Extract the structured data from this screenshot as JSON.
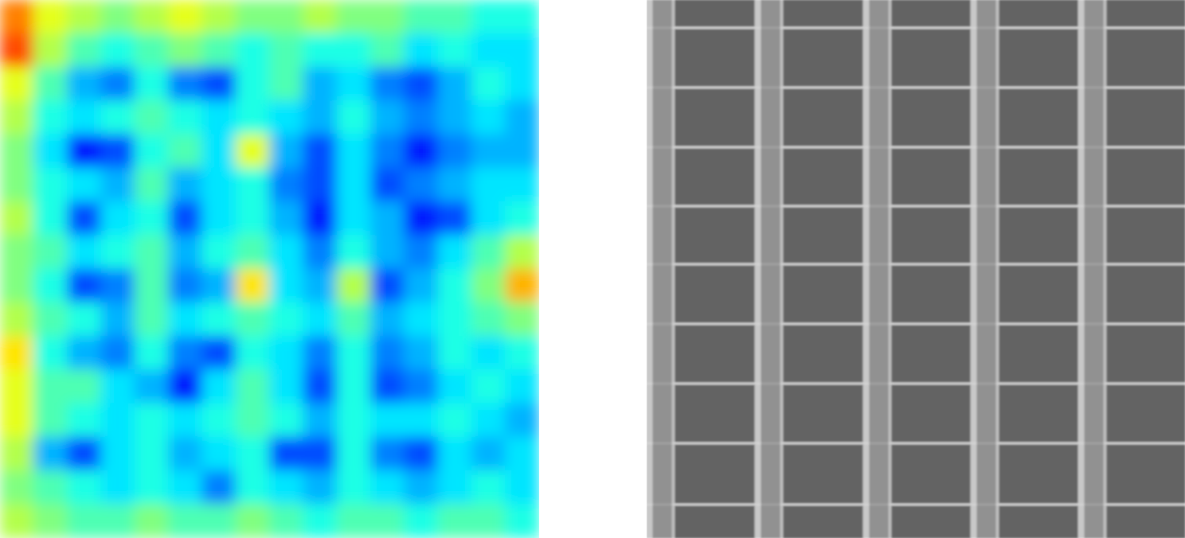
{
  "chart_data": [
    {
      "type": "heatmap",
      "color": "jet",
      "tick_labels": false,
      "color_range": [
        0,
        1
      ],
      "cells": [
        [
          0.75,
          0.6,
          0.55,
          0.5,
          0.55,
          0.6,
          0.55,
          0.5,
          0.5,
          0.55,
          0.5,
          0.5,
          0.45,
          0.45,
          0.4,
          0.4
        ],
        [
          0.8,
          0.55,
          0.45,
          0.4,
          0.45,
          0.5,
          0.45,
          0.4,
          0.45,
          0.4,
          0.4,
          0.45,
          0.35,
          0.4,
          0.35,
          0.35
        ],
        [
          0.6,
          0.45,
          0.3,
          0.25,
          0.4,
          0.25,
          0.2,
          0.4,
          0.45,
          0.3,
          0.35,
          0.25,
          0.2,
          0.3,
          0.4,
          0.35
        ],
        [
          0.55,
          0.4,
          0.35,
          0.4,
          0.45,
          0.4,
          0.35,
          0.4,
          0.35,
          0.3,
          0.4,
          0.3,
          0.25,
          0.3,
          0.35,
          0.3
        ],
        [
          0.5,
          0.35,
          0.15,
          0.2,
          0.4,
          0.45,
          0.35,
          0.6,
          0.3,
          0.2,
          0.35,
          0.25,
          0.15,
          0.25,
          0.3,
          0.3
        ],
        [
          0.5,
          0.4,
          0.35,
          0.3,
          0.45,
          0.3,
          0.35,
          0.4,
          0.25,
          0.2,
          0.35,
          0.2,
          0.25,
          0.3,
          0.35,
          0.35
        ],
        [
          0.55,
          0.4,
          0.2,
          0.35,
          0.4,
          0.2,
          0.35,
          0.4,
          0.3,
          0.15,
          0.35,
          0.3,
          0.15,
          0.2,
          0.35,
          0.4
        ],
        [
          0.5,
          0.45,
          0.35,
          0.4,
          0.45,
          0.3,
          0.4,
          0.45,
          0.35,
          0.25,
          0.4,
          0.3,
          0.25,
          0.35,
          0.45,
          0.55
        ],
        [
          0.5,
          0.4,
          0.2,
          0.25,
          0.45,
          0.25,
          0.3,
          0.65,
          0.35,
          0.3,
          0.55,
          0.2,
          0.3,
          0.4,
          0.5,
          0.7
        ],
        [
          0.55,
          0.45,
          0.4,
          0.3,
          0.45,
          0.35,
          0.4,
          0.45,
          0.4,
          0.35,
          0.45,
          0.3,
          0.35,
          0.4,
          0.45,
          0.5
        ],
        [
          0.65,
          0.4,
          0.3,
          0.25,
          0.4,
          0.25,
          0.2,
          0.4,
          0.35,
          0.25,
          0.4,
          0.25,
          0.3,
          0.4,
          0.35,
          0.4
        ],
        [
          0.6,
          0.45,
          0.45,
          0.35,
          0.3,
          0.15,
          0.35,
          0.45,
          0.35,
          0.2,
          0.4,
          0.2,
          0.25,
          0.35,
          0.4,
          0.35
        ],
        [
          0.6,
          0.45,
          0.4,
          0.35,
          0.4,
          0.35,
          0.4,
          0.45,
          0.4,
          0.3,
          0.4,
          0.35,
          0.35,
          0.4,
          0.35,
          0.3
        ],
        [
          0.55,
          0.3,
          0.2,
          0.35,
          0.4,
          0.3,
          0.35,
          0.4,
          0.2,
          0.2,
          0.4,
          0.25,
          0.2,
          0.35,
          0.3,
          0.35
        ],
        [
          0.5,
          0.45,
          0.4,
          0.35,
          0.4,
          0.35,
          0.25,
          0.4,
          0.35,
          0.3,
          0.4,
          0.35,
          0.3,
          0.35,
          0.4,
          0.35
        ],
        [
          0.55,
          0.5,
          0.45,
          0.45,
          0.5,
          0.45,
          0.45,
          0.5,
          0.45,
          0.4,
          0.45,
          0.45,
          0.4,
          0.45,
          0.45,
          0.4
        ]
      ]
    },
    {
      "type": "heatmap",
      "color": "gray",
      "tick_labels": false,
      "color_range": [
        0,
        255
      ],
      "xlim": [
        0,
        676
      ],
      "ylim": [
        0,
        676
      ],
      "x": [
        0,
        8,
        32,
        36,
        136,
        144,
        168,
        172,
        272,
        280,
        304,
        308,
        407,
        415,
        439,
        443,
        542,
        550,
        574,
        578,
        676
      ],
      "y": [
        0,
        34,
        37,
        109,
        112,
        184,
        187,
        258,
        261,
        331,
        334,
        406,
        409,
        481,
        484,
        556,
        559,
        633,
        636,
        676
      ],
      "cells": [
        [
          200,
          145,
          190,
          100,
          200,
          145,
          190,
          100,
          200,
          145,
          190,
          100,
          200,
          145,
          190,
          100,
          200,
          145,
          190,
          100
        ],
        [
          210,
          160,
          205,
          215,
          210,
          160,
          205,
          215,
          210,
          160,
          205,
          215,
          210,
          160,
          205,
          215,
          210,
          160,
          205,
          215
        ],
        [
          200,
          145,
          190,
          100,
          200,
          145,
          190,
          100,
          200,
          145,
          190,
          100,
          200,
          145,
          190,
          100,
          200,
          145,
          190,
          100
        ],
        [
          210,
          160,
          205,
          215,
          210,
          160,
          205,
          215,
          210,
          160,
          205,
          215,
          210,
          160,
          205,
          215,
          210,
          160,
          205,
          215
        ],
        [
          200,
          145,
          190,
          100,
          200,
          145,
          190,
          100,
          200,
          145,
          190,
          100,
          200,
          145,
          190,
          100,
          200,
          145,
          190,
          100
        ],
        [
          210,
          160,
          205,
          215,
          210,
          160,
          205,
          215,
          210,
          160,
          205,
          215,
          210,
          160,
          205,
          215,
          210,
          160,
          205,
          215
        ],
        [
          200,
          145,
          190,
          100,
          200,
          145,
          190,
          100,
          200,
          145,
          190,
          100,
          200,
          145,
          190,
          100,
          200,
          145,
          190,
          100
        ],
        [
          210,
          160,
          205,
          215,
          210,
          160,
          205,
          215,
          210,
          160,
          205,
          215,
          210,
          160,
          205,
          215,
          210,
          160,
          205,
          215
        ],
        [
          200,
          145,
          190,
          100,
          200,
          145,
          190,
          100,
          200,
          145,
          190,
          100,
          200,
          145,
          190,
          100,
          200,
          145,
          190,
          100
        ],
        [
          210,
          160,
          205,
          215,
          210,
          160,
          205,
          215,
          210,
          160,
          205,
          215,
          210,
          160,
          205,
          215,
          210,
          160,
          205,
          215
        ],
        [
          200,
          145,
          190,
          100,
          200,
          145,
          190,
          100,
          200,
          145,
          190,
          100,
          200,
          145,
          190,
          100,
          200,
          145,
          190,
          100
        ],
        [
          210,
          160,
          205,
          215,
          210,
          160,
          205,
          215,
          210,
          160,
          205,
          215,
          210,
          160,
          205,
          215,
          210,
          160,
          205,
          215
        ],
        [
          200,
          145,
          190,
          100,
          200,
          145,
          190,
          100,
          200,
          145,
          190,
          100,
          200,
          145,
          190,
          100,
          200,
          145,
          190,
          100
        ],
        [
          210,
          160,
          205,
          215,
          210,
          160,
          205,
          215,
          210,
          160,
          205,
          215,
          210,
          160,
          205,
          215,
          210,
          160,
          205,
          215
        ],
        [
          200,
          145,
          190,
          100,
          200,
          145,
          190,
          100,
          200,
          145,
          190,
          100,
          200,
          145,
          190,
          100,
          200,
          145,
          190,
          100
        ],
        [
          210,
          160,
          205,
          215,
          210,
          160,
          205,
          215,
          210,
          160,
          205,
          215,
          210,
          160,
          205,
          215,
          210,
          160,
          205,
          215
        ],
        [
          200,
          145,
          190,
          100,
          200,
          145,
          190,
          100,
          200,
          145,
          190,
          100,
          200,
          145,
          190,
          100,
          200,
          145,
          190,
          100
        ],
        [
          210,
          160,
          205,
          215,
          210,
          160,
          205,
          215,
          210,
          160,
          205,
          215,
          210,
          160,
          205,
          215,
          210,
          160,
          205,
          215
        ],
        [
          200,
          145,
          190,
          100,
          200,
          145,
          190,
          100,
          200,
          145,
          190,
          100,
          200,
          145,
          190,
          100,
          200,
          145,
          190,
          100
        ]
      ]
    }
  ]
}
